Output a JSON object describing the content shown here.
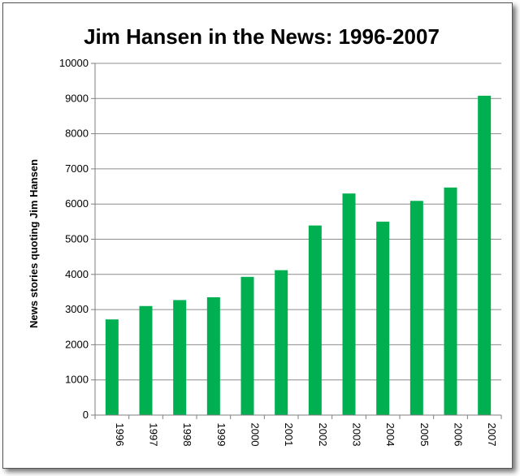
{
  "chart_data": {
    "type": "bar",
    "title": "Jim Hansen in the News: 1996-2007",
    "xlabel": "",
    "ylabel": "News stories quoting Jim Hansen",
    "categories": [
      "1996",
      "1997",
      "1998",
      "1999",
      "2000",
      "2001",
      "2002",
      "2003",
      "2004",
      "2005",
      "2006",
      "2007"
    ],
    "values": [
      2720,
      3100,
      3270,
      3350,
      3930,
      4120,
      5390,
      6300,
      5500,
      6090,
      6470,
      9080
    ],
    "ylim": [
      0,
      10000
    ],
    "yticks": [
      "0",
      "1000",
      "2000",
      "3000",
      "4000",
      "5000",
      "6000",
      "7000",
      "8000",
      "9000",
      "10000"
    ],
    "grid": true,
    "legend": "none",
    "colors": {
      "bar": "#00B050",
      "grid": "#8c8c8c",
      "axis": "#7f7f7f"
    }
  }
}
